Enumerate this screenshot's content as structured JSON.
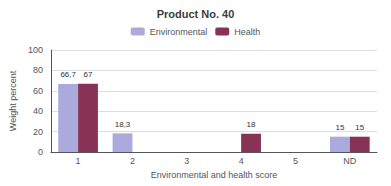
{
  "chart_data": {
    "type": "bar",
    "title": "Product No. 40",
    "xlabel": "Environmental and health score",
    "ylabel": "Weight percent",
    "categories": [
      "1",
      "2",
      "3",
      "4",
      "5",
      "ND"
    ],
    "series": [
      {
        "name": "Environmental",
        "color": "#aaaadd",
        "values": [
          66.7,
          18.3,
          0,
          0,
          0,
          15
        ],
        "value_labels": [
          "66,7",
          "18,3",
          null,
          null,
          null,
          "15"
        ]
      },
      {
        "name": "Health",
        "color": "#883355",
        "values": [
          67,
          0,
          0,
          18,
          0,
          15
        ],
        "value_labels": [
          "67",
          null,
          null,
          "18",
          null,
          "15"
        ]
      }
    ],
    "ylim": [
      0,
      100
    ],
    "yticks": [
      0,
      20,
      40,
      60,
      80,
      100
    ],
    "grid": true,
    "legend": "top",
    "data_labels": true
  }
}
